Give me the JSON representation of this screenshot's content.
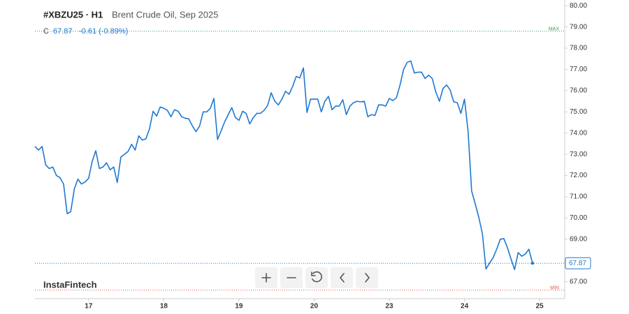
{
  "chart_data": {
    "type": "line",
    "title": "#XBZU25 · H1",
    "subtitle": "Brent Crude Oil, Sep 2025",
    "close_prefix": "C",
    "close": 67.87,
    "change": "-0.61 (-0.89%)",
    "watermark": "InstaFintech",
    "max_line": {
      "value": 78.8,
      "label": "MAX"
    },
    "min_line": {
      "value": 66.6,
      "label": "MIN"
    },
    "color": "#1f78d1",
    "xlim": [
      0,
      148
    ],
    "xticks": [
      {
        "value": 15,
        "label": "17"
      },
      {
        "value": 36,
        "label": "18"
      },
      {
        "value": 57,
        "label": "19"
      },
      {
        "value": 78,
        "label": "20"
      },
      {
        "value": 99,
        "label": "23"
      },
      {
        "value": 120,
        "label": "24"
      },
      {
        "value": 141,
        "label": "25"
      }
    ],
    "ylim": [
      66.2,
      80.27
    ],
    "yticks": [
      {
        "value": 67,
        "label": "67.00"
      },
      {
        "value": 68,
        "label": "68.00"
      },
      {
        "value": 69,
        "label": "69.00"
      },
      {
        "value": 70,
        "label": "70.00"
      },
      {
        "value": 71,
        "label": "71.00"
      },
      {
        "value": 72,
        "label": "72.00"
      },
      {
        "value": 73,
        "label": "73.00"
      },
      {
        "value": 74,
        "label": "74.00"
      },
      {
        "value": 75,
        "label": "75.00"
      },
      {
        "value": 76,
        "label": "76.00"
      },
      {
        "value": 77,
        "label": "77.00"
      },
      {
        "value": 78,
        "label": "78.00"
      },
      {
        "value": 79,
        "label": "79.00"
      },
      {
        "value": 80,
        "label": "80.00"
      }
    ],
    "values": [
      73.37,
      73.2,
      73.37,
      72.5,
      72.33,
      72.4,
      72.0,
      71.9,
      71.6,
      70.2,
      70.3,
      71.37,
      71.83,
      71.6,
      71.7,
      71.87,
      72.67,
      73.17,
      72.33,
      72.4,
      72.6,
      72.27,
      72.4,
      71.67,
      72.87,
      73.0,
      73.13,
      73.47,
      73.2,
      73.87,
      73.67,
      73.73,
      74.2,
      75.03,
      74.8,
      75.23,
      75.17,
      75.07,
      74.77,
      75.1,
      75.03,
      74.77,
      74.7,
      74.67,
      74.33,
      74.07,
      74.33,
      75.0,
      75.0,
      75.17,
      75.63,
      73.7,
      74.1,
      74.53,
      74.87,
      75.2,
      74.73,
      74.6,
      75.03,
      74.93,
      74.43,
      74.73,
      74.93,
      74.93,
      75.07,
      75.3,
      75.9,
      75.5,
      75.33,
      75.6,
      75.97,
      75.83,
      76.2,
      76.67,
      76.6,
      77.07,
      74.97,
      75.6,
      75.6,
      75.6,
      75.0,
      75.5,
      75.73,
      75.1,
      75.27,
      75.27,
      75.57,
      74.87,
      75.27,
      75.43,
      75.5,
      75.47,
      75.5,
      74.77,
      74.87,
      74.83,
      75.33,
      75.33,
      75.27,
      75.63,
      75.53,
      75.67,
      76.27,
      77.0,
      77.33,
      77.4,
      76.83,
      76.87,
      76.87,
      76.57,
      76.73,
      76.57,
      75.93,
      75.5,
      76.1,
      76.27,
      76.03,
      75.47,
      75.43,
      74.93,
      75.6,
      74.1,
      71.27,
      70.67,
      70.03,
      69.27,
      67.6,
      67.87,
      68.13,
      68.53,
      69.0,
      69.03,
      68.6,
      68.07,
      67.57,
      68.37,
      68.2,
      68.3,
      68.53,
      67.87
    ]
  }
}
